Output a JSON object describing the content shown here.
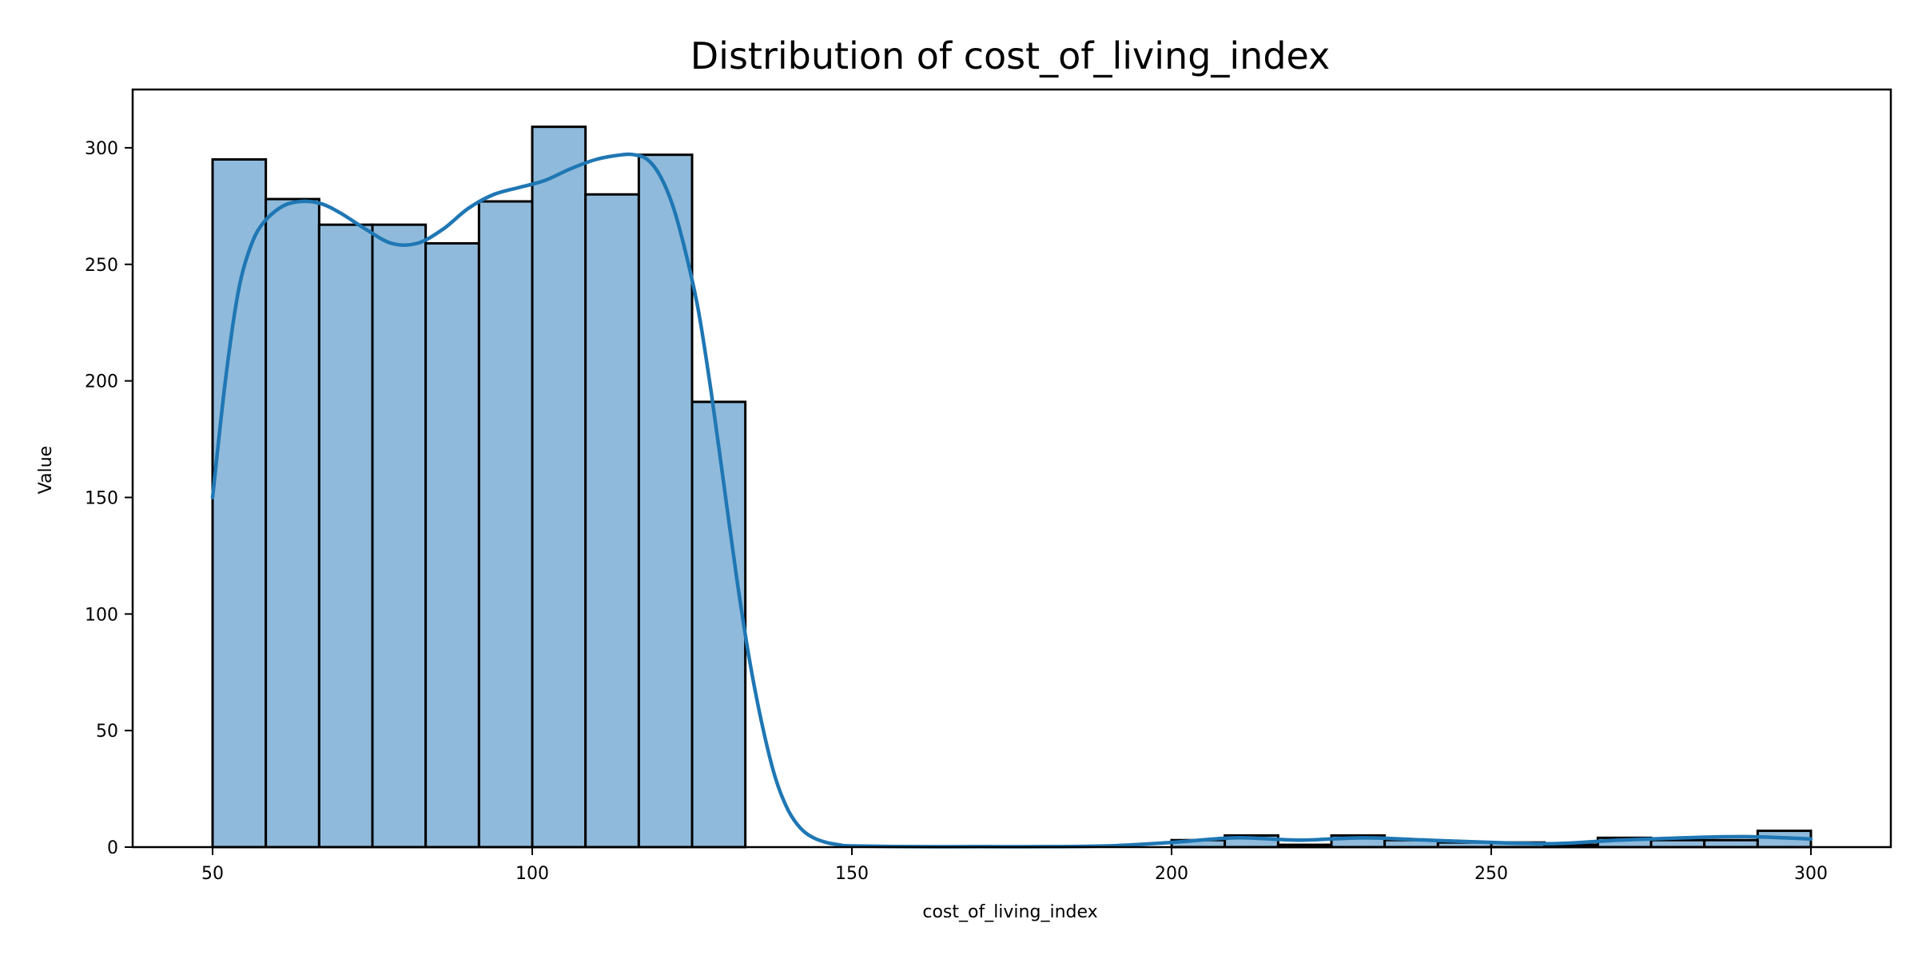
{
  "chart_data": {
    "type": "bar",
    "subtype": "histogram_with_kde",
    "title": "Distribution of cost_of_living_index",
    "xlabel": "cost_of_living_index",
    "ylabel": "Value",
    "xlim": [
      37.5,
      312.5
    ],
    "ylim": [
      0,
      325
    ],
    "x_ticks": [
      50,
      100,
      150,
      200,
      250,
      300
    ],
    "y_ticks": [
      0,
      50,
      100,
      150,
      200,
      250,
      300
    ],
    "grid": false,
    "legend": "none",
    "colors": {
      "bar_fill": "#8fbadb",
      "bar_edge": "#000000",
      "kde_line": "#1f77b4"
    },
    "bins": [
      {
        "x0": 50.0,
        "x1": 58.33,
        "count": 295
      },
      {
        "x0": 58.33,
        "x1": 66.67,
        "count": 278
      },
      {
        "x0": 66.67,
        "x1": 75.0,
        "count": 267
      },
      {
        "x0": 75.0,
        "x1": 83.33,
        "count": 267
      },
      {
        "x0": 83.33,
        "x1": 91.67,
        "count": 259
      },
      {
        "x0": 91.67,
        "x1": 100.0,
        "count": 277
      },
      {
        "x0": 100.0,
        "x1": 108.33,
        "count": 309
      },
      {
        "x0": 108.33,
        "x1": 116.67,
        "count": 280
      },
      {
        "x0": 116.67,
        "x1": 125.0,
        "count": 297
      },
      {
        "x0": 125.0,
        "x1": 133.33,
        "count": 191
      },
      {
        "x0": 133.33,
        "x1": 141.67,
        "count": 0
      },
      {
        "x0": 141.67,
        "x1": 150.0,
        "count": 0
      },
      {
        "x0": 150.0,
        "x1": 158.33,
        "count": 0
      },
      {
        "x0": 158.33,
        "x1": 166.67,
        "count": 0
      },
      {
        "x0": 166.67,
        "x1": 175.0,
        "count": 0
      },
      {
        "x0": 175.0,
        "x1": 183.33,
        "count": 0
      },
      {
        "x0": 183.33,
        "x1": 191.67,
        "count": 0
      },
      {
        "x0": 191.67,
        "x1": 200.0,
        "count": 0
      },
      {
        "x0": 200.0,
        "x1": 208.33,
        "count": 3
      },
      {
        "x0": 208.33,
        "x1": 216.67,
        "count": 5
      },
      {
        "x0": 216.67,
        "x1": 225.0,
        "count": 1
      },
      {
        "x0": 225.0,
        "x1": 233.33,
        "count": 5
      },
      {
        "x0": 233.33,
        "x1": 241.67,
        "count": 3
      },
      {
        "x0": 241.67,
        "x1": 250.0,
        "count": 2
      },
      {
        "x0": 250.0,
        "x1": 258.33,
        "count": 2
      },
      {
        "x0": 258.33,
        "x1": 266.67,
        "count": 1
      },
      {
        "x0": 266.67,
        "x1": 275.0,
        "count": 4
      },
      {
        "x0": 275.0,
        "x1": 283.33,
        "count": 3
      },
      {
        "x0": 283.33,
        "x1": 291.67,
        "count": 3
      },
      {
        "x0": 291.67,
        "x1": 300.0,
        "count": 7
      }
    ],
    "kde": {
      "x": [
        50,
        52,
        54,
        56,
        58,
        61,
        64,
        67,
        70,
        74,
        78,
        82,
        86,
        90,
        94,
        98,
        102,
        106,
        110,
        114,
        116,
        118,
        120,
        122,
        124,
        126,
        128,
        130,
        132,
        134,
        136,
        138,
        140,
        142,
        144,
        146,
        148,
        150,
        160,
        170,
        180,
        190,
        200,
        210,
        220,
        230,
        240,
        250,
        260,
        270,
        280,
        290,
        300
      ],
      "y": [
        150,
        200,
        238,
        258,
        268,
        275,
        277,
        276,
        272,
        265,
        259,
        259,
        265,
        274,
        280,
        283,
        286,
        291,
        295,
        297,
        297,
        295,
        288,
        275,
        255,
        230,
        195,
        155,
        115,
        80,
        52,
        30,
        16,
        8,
        4,
        2,
        1,
        0.5,
        0.2,
        0.2,
        0.2,
        0.5,
        2,
        4,
        3,
        4,
        3,
        2,
        1.5,
        3,
        4,
        4.5,
        3.5
      ]
    }
  }
}
